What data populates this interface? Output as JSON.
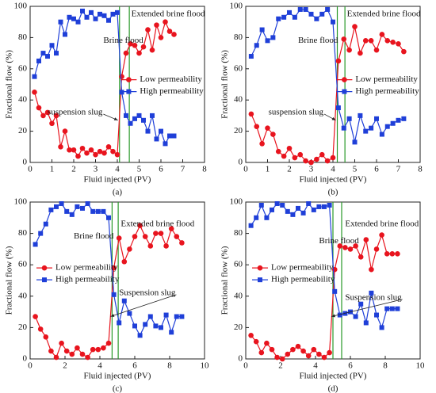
{
  "chart_data": [
    {
      "type": "line",
      "label": "(a)",
      "xlabel": "Fluid injected (PV)",
      "ylabel": "Fractional flow (%)",
      "x": [
        0.2,
        0.4,
        0.6,
        0.8,
        1.0,
        1.2,
        1.4,
        1.6,
        1.8,
        2.0,
        2.2,
        2.4,
        2.6,
        2.8,
        3.0,
        3.2,
        3.4,
        3.6,
        3.8,
        4.0,
        4.2,
        4.4,
        4.6,
        4.8,
        5.0,
        5.2,
        5.4,
        5.6,
        5.8,
        6.0,
        6.2,
        6.4,
        6.6
      ],
      "series": [
        {
          "name": "Low permeability",
          "color": "#e8141e",
          "marker": "circle",
          "values": [
            45,
            35,
            30,
            32,
            25,
            30,
            10,
            20,
            8,
            8,
            4,
            9,
            6,
            8,
            5,
            7,
            6,
            10,
            7,
            5,
            55,
            70,
            76,
            75,
            70,
            74,
            85,
            72,
            88,
            80,
            90,
            84,
            82
          ]
        },
        {
          "name": "High permeability",
          "color": "#1f3fd8",
          "marker": "square",
          "values": [
            55,
            65,
            70,
            68,
            75,
            70,
            90,
            82,
            93,
            92,
            90,
            97,
            93,
            96,
            92,
            95,
            94,
            91,
            95,
            96,
            45,
            30,
            25,
            28,
            30,
            27,
            20,
            30,
            15,
            20,
            12,
            17,
            17
          ]
        }
      ],
      "xlim": [
        0,
        8
      ],
      "xticks": [
        0,
        1,
        2,
        3,
        4,
        5,
        6,
        7,
        8
      ],
      "ylim": [
        0,
        100
      ],
      "yticks": [
        0,
        20,
        40,
        60,
        80,
        100
      ],
      "vlines": [
        4.1,
        4.55
      ],
      "vline_color": "#2a9a2a",
      "legend": "right",
      "annotations": [
        "Brine flood",
        "Extended brine flood",
        "suspension slug"
      ]
    },
    {
      "type": "line",
      "label": "(b)",
      "xlabel": "Fluid injected (PV)",
      "ylabel": "Fractional flow (%)",
      "x": [
        0.25,
        0.5,
        0.75,
        1.0,
        1.25,
        1.5,
        1.75,
        2.0,
        2.25,
        2.5,
        2.75,
        3.0,
        3.25,
        3.5,
        3.75,
        4.0,
        4.25,
        4.5,
        4.75,
        5.0,
        5.25,
        5.5,
        5.75,
        6.0,
        6.25,
        6.5,
        6.75,
        7.0,
        7.25
      ],
      "series": [
        {
          "name": "Low permeability",
          "color": "#e8141e",
          "marker": "circle",
          "values": [
            31,
            23,
            12,
            22,
            18,
            7,
            4,
            9,
            3,
            5,
            1,
            0,
            2,
            5,
            1,
            3,
            65,
            79,
            72,
            87,
            70,
            78,
            78,
            72,
            82,
            78,
            77,
            76,
            71
          ]
        },
        {
          "name": "High permeability",
          "color": "#1f3fd8",
          "marker": "square",
          "values": [
            68,
            75,
            85,
            78,
            80,
            92,
            93,
            96,
            93,
            98,
            98,
            95,
            92,
            95,
            98,
            90,
            35,
            22,
            28,
            13,
            30,
            20,
            22,
            28,
            18,
            23,
            25,
            27,
            28
          ]
        }
      ],
      "xlim": [
        0,
        8
      ],
      "xticks": [
        0,
        1,
        2,
        3,
        4,
        5,
        6,
        7,
        8
      ],
      "ylim": [
        0,
        100
      ],
      "yticks": [
        0,
        20,
        40,
        60,
        80,
        100
      ],
      "vlines": [
        4.2,
        4.55
      ],
      "vline_color": "#2a9a2a",
      "legend": "right",
      "annotations": [
        "Brine flood",
        "Extended brine flood",
        "suspension slug"
      ]
    },
    {
      "type": "line",
      "label": "(c)",
      "xlabel": "Fluid injected (PV)",
      "ylabel": "Fractional flow (%)",
      "x": [
        0.3,
        0.6,
        0.9,
        1.2,
        1.5,
        1.8,
        2.1,
        2.4,
        2.7,
        3.0,
        3.3,
        3.6,
        3.9,
        4.2,
        4.5,
        4.8,
        5.1,
        5.4,
        5.7,
        6.0,
        6.3,
        6.6,
        6.9,
        7.2,
        7.5,
        7.8,
        8.1,
        8.4,
        8.7
      ],
      "series": [
        {
          "name": "Low permeability",
          "color": "#e8141e",
          "marker": "circle",
          "values": [
            27,
            19,
            14,
            5,
            1,
            10,
            5,
            3,
            7,
            3,
            1,
            6,
            6,
            7,
            10,
            58,
            77,
            62,
            70,
            78,
            85,
            78,
            72,
            80,
            80,
            72,
            83,
            78,
            74
          ]
        },
        {
          "name": "High permeability",
          "color": "#1f3fd8",
          "marker": "square",
          "values": [
            73,
            80,
            86,
            95,
            97,
            99,
            94,
            92,
            97,
            96,
            99,
            94,
            94,
            94,
            90,
            41,
            23,
            37,
            29,
            21,
            15,
            22,
            27,
            21,
            20,
            28,
            17,
            27,
            27
          ]
        }
      ],
      "xlim": [
        0,
        10
      ],
      "xticks": [
        0,
        2,
        4,
        6,
        8,
        10
      ],
      "ylim": [
        0,
        100
      ],
      "yticks": [
        0,
        20,
        40,
        60,
        80,
        100
      ],
      "vlines": [
        4.7,
        5.05
      ],
      "vline_color": "#2a9a2a",
      "legend": "left",
      "annotations": [
        "Brine flood",
        "Extended brine flood",
        "Suspension slug"
      ]
    },
    {
      "type": "line",
      "label": "(d)",
      "xlabel": "Fluid injected (PV)",
      "ylabel": "Fractional flow (%)",
      "x": [
        0.3,
        0.6,
        0.9,
        1.2,
        1.5,
        1.8,
        2.1,
        2.4,
        2.7,
        3.0,
        3.3,
        3.6,
        3.9,
        4.2,
        4.5,
        4.8,
        5.1,
        5.4,
        5.7,
        6.0,
        6.3,
        6.6,
        6.9,
        7.2,
        7.5,
        7.8,
        8.1,
        8.4,
        8.7
      ],
      "series": [
        {
          "name": "Low permeability",
          "color": "#e8141e",
          "marker": "circle",
          "values": [
            15,
            11,
            4,
            10,
            6,
            1,
            0,
            3,
            6,
            8,
            5,
            2,
            6,
            3,
            1,
            4,
            57,
            72,
            71,
            70,
            72,
            65,
            76,
            57,
            70,
            79,
            67,
            67,
            67
          ]
        },
        {
          "name": "High permeability",
          "color": "#1f3fd8",
          "marker": "square",
          "values": [
            85,
            90,
            98,
            90,
            95,
            99,
            98,
            94,
            92,
            96,
            93,
            99,
            95,
            97,
            97,
            98,
            43,
            28,
            29,
            30,
            27,
            35,
            23,
            42,
            28,
            20,
            32,
            32,
            32
          ]
        }
      ],
      "xlim": [
        0,
        10
      ],
      "xticks": [
        0,
        2,
        4,
        6,
        8,
        10
      ],
      "ylim": [
        0,
        100
      ],
      "yticks": [
        0,
        20,
        40,
        60,
        80,
        100
      ],
      "vlines": [
        5.0,
        5.5
      ],
      "vline_color": "#2a9a2a",
      "legend": "left",
      "annotations": [
        "Brine flood",
        "Extended brine flood",
        "Suspension slug"
      ]
    }
  ]
}
